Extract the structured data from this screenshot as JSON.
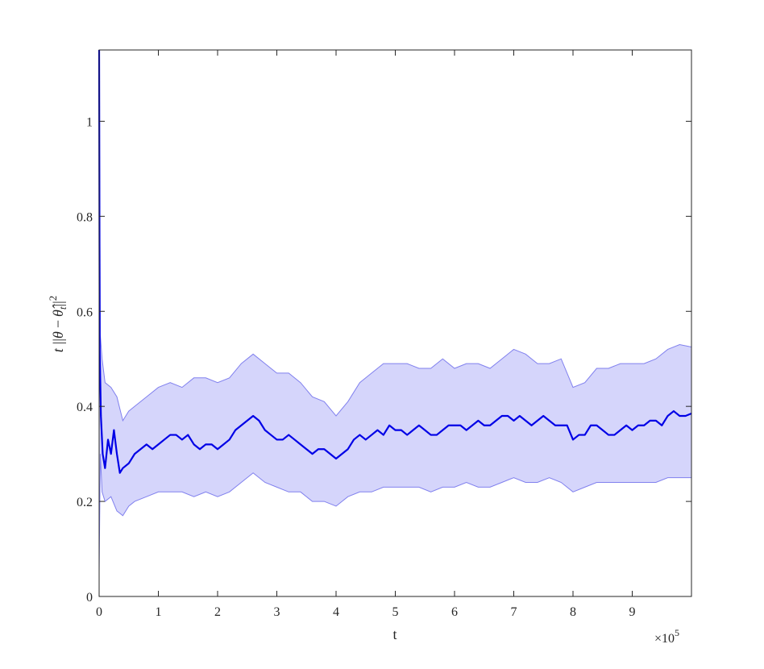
{
  "chart_data": {
    "type": "line",
    "xlabel": "t",
    "ylabel": "t ||θ − θ̂_t||²",
    "ylabel_parts": {
      "t": "t",
      "open": "||",
      "theta": "θ",
      "minus": "−",
      "theta_hat": "θ̂",
      "sub": "t",
      "close": "||",
      "sup": "2"
    },
    "x_multiplier_label": "×10",
    "x_multiplier_exp": "5",
    "xlim": [
      0,
      1000000
    ],
    "ylim": [
      0,
      1.15
    ],
    "x_ticks": [
      0,
      100000,
      200000,
      300000,
      400000,
      500000,
      600000,
      700000,
      800000,
      900000
    ],
    "x_tick_labels": [
      "0",
      "1",
      "2",
      "3",
      "4",
      "5",
      "6",
      "7",
      "8",
      "9"
    ],
    "y_ticks": [
      0,
      0.2,
      0.4,
      0.6,
      0.8,
      1.0
    ],
    "y_tick_labels": [
      "0",
      "0.2",
      "0.4",
      "0.6",
      "0.8",
      "1"
    ],
    "grid": false,
    "colors": {
      "line": "#0000e6",
      "band_fill": "#d5d5fb",
      "band_edge": "#8080ee",
      "axis": "#262626"
    },
    "series": [
      {
        "role": "mean",
        "x": [
          0,
          1000,
          3000,
          6000,
          10000,
          15000,
          20000,
          25000,
          30000,
          35000,
          40000,
          50000,
          60000,
          70000,
          80000,
          90000,
          100000,
          110000,
          120000,
          130000,
          140000,
          150000,
          160000,
          170000,
          180000,
          190000,
          200000,
          210000,
          220000,
          230000,
          240000,
          250000,
          260000,
          270000,
          280000,
          290000,
          300000,
          310000,
          320000,
          330000,
          340000,
          350000,
          360000,
          370000,
          380000,
          390000,
          400000,
          410000,
          420000,
          430000,
          440000,
          450000,
          460000,
          470000,
          480000,
          490000,
          500000,
          510000,
          520000,
          530000,
          540000,
          550000,
          560000,
          570000,
          580000,
          590000,
          600000,
          610000,
          620000,
          630000,
          640000,
          650000,
          660000,
          670000,
          680000,
          690000,
          700000,
          710000,
          720000,
          730000,
          740000,
          750000,
          760000,
          770000,
          780000,
          790000,
          800000,
          810000,
          820000,
          830000,
          840000,
          850000,
          860000,
          870000,
          880000,
          890000,
          900000,
          910000,
          920000,
          930000,
          940000,
          950000,
          960000,
          970000,
          980000,
          990000,
          1000000
        ],
        "y": [
          1.15,
          0.52,
          0.38,
          0.3,
          0.27,
          0.33,
          0.3,
          0.35,
          0.3,
          0.26,
          0.27,
          0.28,
          0.3,
          0.31,
          0.32,
          0.31,
          0.32,
          0.33,
          0.34,
          0.34,
          0.33,
          0.34,
          0.32,
          0.31,
          0.32,
          0.32,
          0.31,
          0.32,
          0.33,
          0.35,
          0.36,
          0.37,
          0.38,
          0.37,
          0.35,
          0.34,
          0.33,
          0.33,
          0.34,
          0.33,
          0.32,
          0.31,
          0.3,
          0.31,
          0.31,
          0.3,
          0.29,
          0.3,
          0.31,
          0.33,
          0.34,
          0.33,
          0.34,
          0.35,
          0.34,
          0.36,
          0.35,
          0.35,
          0.34,
          0.35,
          0.36,
          0.35,
          0.34,
          0.34,
          0.35,
          0.36,
          0.36,
          0.36,
          0.35,
          0.36,
          0.37,
          0.36,
          0.36,
          0.37,
          0.38,
          0.38,
          0.37,
          0.38,
          0.37,
          0.36,
          0.37,
          0.38,
          0.37,
          0.36,
          0.36,
          0.36,
          0.33,
          0.34,
          0.34,
          0.36,
          0.36,
          0.35,
          0.34,
          0.34,
          0.35,
          0.36,
          0.35,
          0.36,
          0.36,
          0.37,
          0.37,
          0.36,
          0.38,
          0.39,
          0.38,
          0.38,
          0.385
        ]
      },
      {
        "role": "upper",
        "x": [
          0,
          2000,
          5000,
          10000,
          20000,
          30000,
          40000,
          50000,
          60000,
          80000,
          100000,
          120000,
          140000,
          160000,
          180000,
          200000,
          220000,
          240000,
          260000,
          280000,
          300000,
          320000,
          340000,
          360000,
          380000,
          400000,
          420000,
          440000,
          460000,
          480000,
          500000,
          520000,
          540000,
          560000,
          580000,
          600000,
          620000,
          640000,
          660000,
          680000,
          700000,
          720000,
          740000,
          760000,
          780000,
          800000,
          820000,
          840000,
          860000,
          880000,
          900000,
          920000,
          940000,
          960000,
          980000,
          1000000
        ],
        "y": [
          1.15,
          0.55,
          0.5,
          0.45,
          0.44,
          0.42,
          0.37,
          0.39,
          0.4,
          0.42,
          0.44,
          0.45,
          0.44,
          0.46,
          0.46,
          0.45,
          0.46,
          0.49,
          0.51,
          0.49,
          0.47,
          0.47,
          0.45,
          0.42,
          0.41,
          0.38,
          0.41,
          0.45,
          0.47,
          0.49,
          0.49,
          0.49,
          0.48,
          0.48,
          0.5,
          0.48,
          0.49,
          0.49,
          0.48,
          0.5,
          0.52,
          0.51,
          0.49,
          0.49,
          0.5,
          0.44,
          0.45,
          0.48,
          0.48,
          0.49,
          0.49,
          0.49,
          0.5,
          0.52,
          0.53,
          0.525
        ]
      },
      {
        "role": "lower",
        "x": [
          0,
          2000,
          5000,
          10000,
          20000,
          30000,
          40000,
          50000,
          60000,
          80000,
          100000,
          120000,
          140000,
          160000,
          180000,
          200000,
          220000,
          240000,
          260000,
          280000,
          300000,
          320000,
          340000,
          360000,
          380000,
          400000,
          420000,
          440000,
          460000,
          480000,
          500000,
          520000,
          540000,
          560000,
          580000,
          600000,
          620000,
          640000,
          660000,
          680000,
          700000,
          720000,
          740000,
          760000,
          780000,
          800000,
          820000,
          840000,
          860000,
          880000,
          900000,
          920000,
          940000,
          960000,
          980000,
          1000000
        ],
        "y": [
          0.05,
          0.3,
          0.22,
          0.2,
          0.21,
          0.18,
          0.17,
          0.19,
          0.2,
          0.21,
          0.22,
          0.22,
          0.22,
          0.21,
          0.22,
          0.21,
          0.22,
          0.24,
          0.26,
          0.24,
          0.23,
          0.22,
          0.22,
          0.2,
          0.2,
          0.19,
          0.21,
          0.22,
          0.22,
          0.23,
          0.23,
          0.23,
          0.23,
          0.22,
          0.23,
          0.23,
          0.24,
          0.23,
          0.23,
          0.24,
          0.25,
          0.24,
          0.24,
          0.25,
          0.24,
          0.22,
          0.23,
          0.24,
          0.24,
          0.24,
          0.24,
          0.24,
          0.24,
          0.25,
          0.25,
          0.25
        ]
      }
    ]
  }
}
